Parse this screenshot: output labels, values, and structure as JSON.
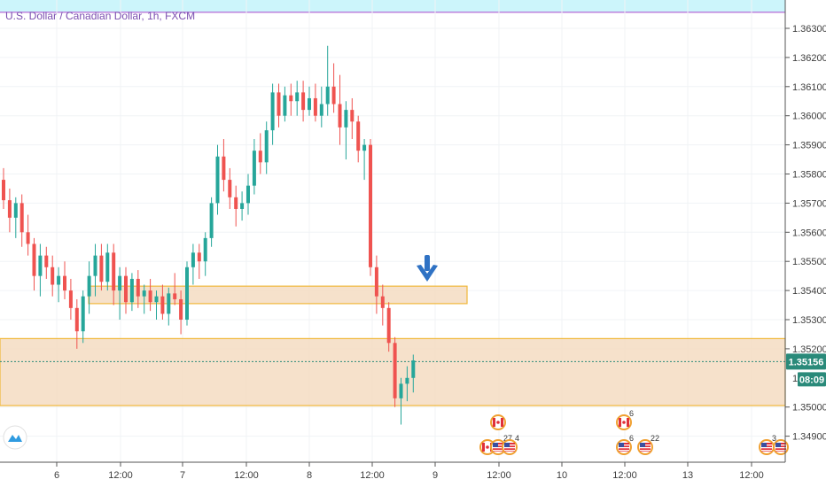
{
  "chart_data": {
    "type": "candlestick",
    "title": "U.S. Dollar / Canadian Dollar, 1h, FXCM",
    "ylim": [
      1.3482,
      1.3642
    ],
    "yticks": [
      "1.36300",
      "1.36200",
      "1.36100",
      "1.36000",
      "1.35900",
      "1.35800",
      "1.35700",
      "1.35600",
      "1.35500",
      "1.35400",
      "1.35300",
      "1.35200",
      "1.35000",
      "1.34900"
    ],
    "xticks": [
      "6",
      "12:00",
      "7",
      "12:00",
      "8",
      "12:00",
      "9",
      "12:00",
      "10",
      "12:00",
      "13",
      "12:00"
    ],
    "current_price": "1.35156",
    "countdown": "08:09",
    "current_price_value": 1.35156,
    "zones": [
      {
        "name": "upper-resistance-zone",
        "y_low": 1.35355,
        "y_high": 1.35415
      },
      {
        "name": "lower-support-zone",
        "y_low": 1.35005,
        "y_high": 1.35235
      }
    ],
    "highlight_band_top": 1.3642,
    "resistance_line": 1.36355,
    "candles": [
      [
        1.3578,
        1.3582,
        1.3568,
        1.3571
      ],
      [
        1.3571,
        1.3575,
        1.356,
        1.3565
      ],
      [
        1.3565,
        1.3572,
        1.3558,
        1.357
      ],
      [
        1.357,
        1.3573,
        1.3555,
        1.356
      ],
      [
        1.356,
        1.3566,
        1.3552,
        1.3556
      ],
      [
        1.3556,
        1.3558,
        1.354,
        1.3545
      ],
      [
        1.3545,
        1.3556,
        1.3538,
        1.3552
      ],
      [
        1.3552,
        1.3555,
        1.3544,
        1.3548
      ],
      [
        1.3548,
        1.3552,
        1.3538,
        1.3542
      ],
      [
        1.3542,
        1.3548,
        1.3536,
        1.3545
      ],
      [
        1.3545,
        1.355,
        1.3537,
        1.354
      ],
      [
        1.354,
        1.3544,
        1.353,
        1.3534
      ],
      [
        1.3534,
        1.3537,
        1.352,
        1.3526
      ],
      [
        1.3526,
        1.354,
        1.3522,
        1.3538
      ],
      [
        1.3538,
        1.355,
        1.3532,
        1.3545
      ],
      [
        1.3545,
        1.3556,
        1.3538,
        1.3552
      ],
      [
        1.3552,
        1.3556,
        1.354,
        1.3543
      ],
      [
        1.3543,
        1.3556,
        1.354,
        1.3553
      ],
      [
        1.3553,
        1.3556,
        1.3535,
        1.354
      ],
      [
        1.354,
        1.3548,
        1.353,
        1.3545
      ],
      [
        1.3545,
        1.3548,
        1.3532,
        1.3536
      ],
      [
        1.3536,
        1.3546,
        1.3533,
        1.3544
      ],
      [
        1.3544,
        1.3547,
        1.3534,
        1.3538
      ],
      [
        1.3538,
        1.3542,
        1.3532,
        1.354
      ],
      [
        1.354,
        1.3544,
        1.3533,
        1.3536
      ],
      [
        1.3536,
        1.354,
        1.353,
        1.3538
      ],
      [
        1.3538,
        1.3542,
        1.353,
        1.3532
      ],
      [
        1.3532,
        1.3541,
        1.3528,
        1.3539
      ],
      [
        1.3539,
        1.3546,
        1.3535,
        1.3537
      ],
      [
        1.3537,
        1.354,
        1.3525,
        1.353
      ],
      [
        1.353,
        1.355,
        1.3528,
        1.3548
      ],
      [
        1.3548,
        1.3556,
        1.3542,
        1.3553
      ],
      [
        1.3553,
        1.3556,
        1.3544,
        1.355
      ],
      [
        1.355,
        1.356,
        1.3545,
        1.3558
      ],
      [
        1.3558,
        1.3572,
        1.3555,
        1.357
      ],
      [
        1.357,
        1.359,
        1.3566,
        1.3586
      ],
      [
        1.3586,
        1.3592,
        1.3574,
        1.3578
      ],
      [
        1.3578,
        1.3582,
        1.3568,
        1.3572
      ],
      [
        1.3572,
        1.3576,
        1.3562,
        1.3568
      ],
      [
        1.3568,
        1.3574,
        1.3564,
        1.357
      ],
      [
        1.357,
        1.358,
        1.3566,
        1.3576
      ],
      [
        1.3576,
        1.3592,
        1.3573,
        1.3588
      ],
      [
        1.3588,
        1.3594,
        1.358,
        1.3584
      ],
      [
        1.3584,
        1.3598,
        1.358,
        1.3595
      ],
      [
        1.3595,
        1.3611,
        1.359,
        1.3608
      ],
      [
        1.3608,
        1.3611,
        1.3596,
        1.36
      ],
      [
        1.36,
        1.361,
        1.3598,
        1.3607
      ],
      [
        1.3607,
        1.3611,
        1.36,
        1.3605
      ],
      [
        1.3605,
        1.3612,
        1.36,
        1.3608
      ],
      [
        1.3608,
        1.3612,
        1.3598,
        1.3602
      ],
      [
        1.3602,
        1.361,
        1.36,
        1.3606
      ],
      [
        1.3606,
        1.3611,
        1.3598,
        1.36
      ],
      [
        1.36,
        1.361,
        1.3596,
        1.3604
      ],
      [
        1.3604,
        1.3624,
        1.36,
        1.361
      ],
      [
        1.361,
        1.3618,
        1.3601,
        1.3604
      ],
      [
        1.3604,
        1.3614,
        1.359,
        1.3596
      ],
      [
        1.3596,
        1.3605,
        1.3585,
        1.3602
      ],
      [
        1.3602,
        1.3606,
        1.3592,
        1.3598
      ],
      [
        1.3598,
        1.36,
        1.3584,
        1.3588
      ],
      [
        1.3588,
        1.3592,
        1.3578,
        1.359
      ],
      [
        1.359,
        1.3592,
        1.3545,
        1.3548
      ],
      [
        1.3548,
        1.3552,
        1.3532,
        1.3538
      ],
      [
        1.3538,
        1.3542,
        1.3528,
        1.3534
      ],
      [
        1.3534,
        1.3536,
        1.3519,
        1.3522
      ],
      [
        1.3522,
        1.3524,
        1.35,
        1.3503
      ],
      [
        1.3503,
        1.351,
        1.3494,
        1.3508
      ],
      [
        1.3508,
        1.3514,
        1.3502,
        1.351
      ],
      [
        1.351,
        1.3518,
        1.3505,
        1.3516
      ]
    ],
    "events": [
      {
        "x_label": "12:00",
        "row": 1,
        "flag": "ca"
      },
      {
        "x_label": "12:00",
        "row": 2,
        "flag": "ca"
      },
      {
        "x_label": "12:00",
        "row": 2,
        "flag": "us",
        "count": "27"
      },
      {
        "x_label": "12:00",
        "row": 2,
        "flag": "us",
        "count": "4"
      },
      {
        "x_label": "12:00b",
        "row": 1,
        "flag": "ca",
        "count": "6"
      },
      {
        "x_label": "12:00b",
        "row": 2,
        "flag": "us",
        "count": "6"
      },
      {
        "x_label": "12:00b",
        "row": 2,
        "flag": "us",
        "count": "22"
      },
      {
        "x_label": "12:00c",
        "row": 2,
        "flag": "us",
        "count": "3"
      },
      {
        "x_label": "12:00c",
        "row": 2,
        "flag": "us"
      }
    ],
    "colors": {
      "up": "#26a69a",
      "down": "#ef5350",
      "zone_fill": "#f4dcc2",
      "zone_stroke": "#f0b73a",
      "band": "#ccf5fb",
      "resistance": "#b56bd6",
      "price_tag": "#2a8a7a",
      "arrow": "#2f72c4"
    }
  }
}
